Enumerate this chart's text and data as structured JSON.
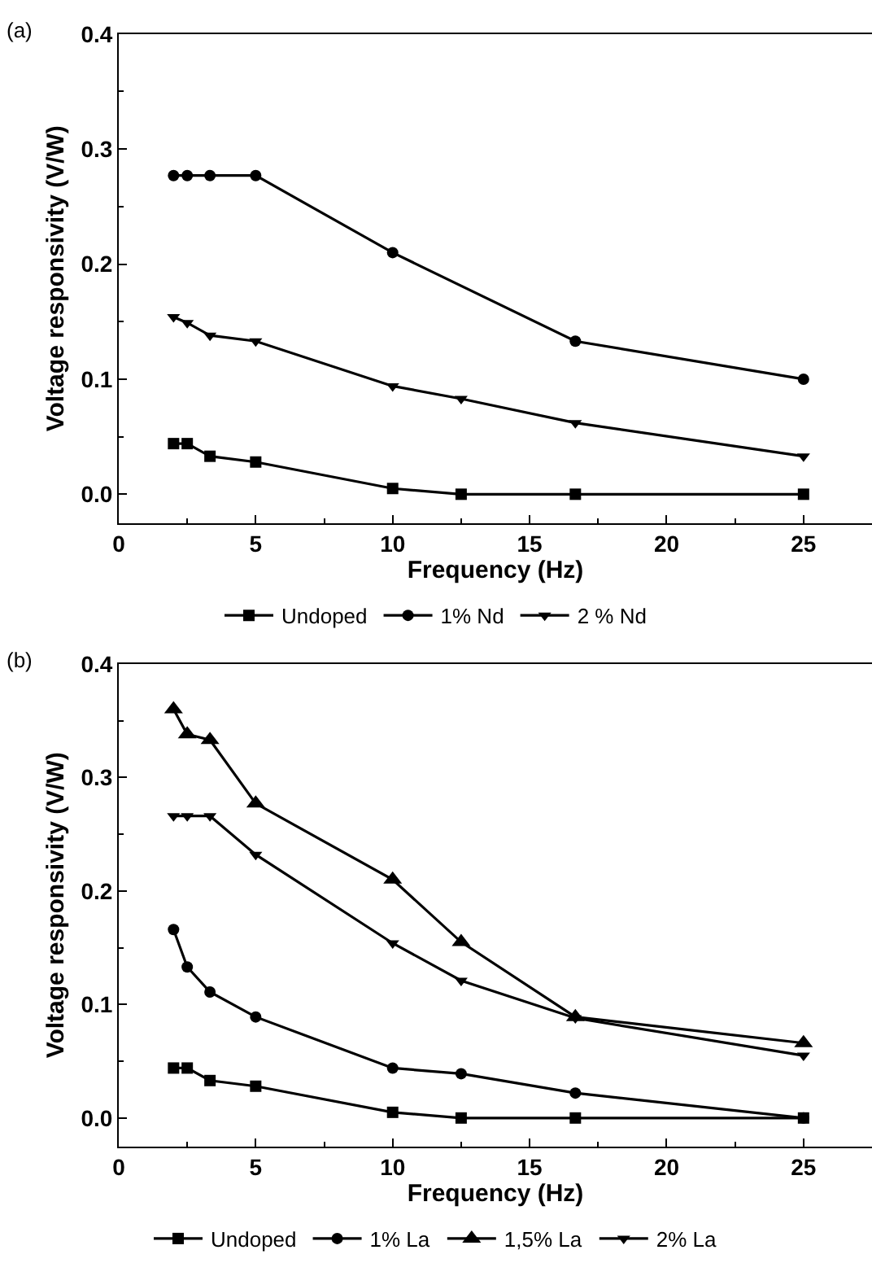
{
  "chart_data": [
    {
      "type": "line",
      "annotations": [
        "(a)"
      ],
      "xlabel": "Frequency (Hz)",
      "ylabel": "Voltage responsivity (V/W)",
      "xlim": [
        0,
        27.5
      ],
      "xticks": [
        0,
        5,
        10,
        15,
        20,
        25
      ],
      "ylim": [
        -0.025,
        0.4
      ],
      "yticks": [
        {
          "value": 0,
          "label": "0.0"
        },
        0.1,
        0.2,
        0.3,
        0.4
      ],
      "grid": false,
      "legend": "bottom",
      "series": [
        {
          "name": "Undoped",
          "color": "#000000",
          "marker": "square",
          "x": [
            2,
            2.5,
            3.33,
            5,
            10,
            12.5,
            16.67,
            25
          ],
          "values": [
            0.044,
            0.044,
            0.033,
            0.028,
            0.005,
            0,
            0,
            0
          ]
        },
        {
          "name": "1% Nd",
          "color": "#000000",
          "marker": "circle",
          "x": [
            2,
            2.5,
            3.33,
            5,
            10,
            16.67,
            25
          ],
          "values": [
            0.277,
            0.277,
            0.277,
            0.277,
            0.21,
            0.133,
            0.1
          ]
        },
        {
          "name": "2 % Nd",
          "color": "#000000",
          "marker": "triangle-down",
          "x": [
            2,
            2.5,
            3.33,
            5,
            10,
            12.5,
            16.67,
            25
          ],
          "values": [
            0.154,
            0.149,
            0.138,
            0.133,
            0.094,
            0.083,
            0.062,
            0.033
          ]
        }
      ]
    },
    {
      "type": "line",
      "annotations": [
        "(b)"
      ],
      "xlabel": "Frequency (Hz)",
      "ylabel": "Voltage responsivity (V/W)",
      "xlim": [
        0,
        27.5
      ],
      "xticks": [
        0,
        5,
        10,
        15,
        20,
        25
      ],
      "ylim": [
        -0.025,
        0.4
      ],
      "yticks": [
        {
          "value": 0,
          "label": "0.0"
        },
        0.1,
        0.2,
        0.3,
        0.4
      ],
      "grid": false,
      "legend": "bottom",
      "series": [
        {
          "name": "Undoped",
          "color": "#000000",
          "marker": "square",
          "x": [
            2,
            2.5,
            3.33,
            5,
            10,
            12.5,
            16.67,
            25
          ],
          "values": [
            0.044,
            0.044,
            0.033,
            0.028,
            0.005,
            0,
            0,
            0
          ]
        },
        {
          "name": "1% La",
          "color": "#000000",
          "marker": "circle",
          "x": [
            2,
            2.5,
            3.33,
            5,
            10,
            12.5,
            16.67,
            25
          ],
          "values": [
            0.166,
            0.133,
            0.111,
            0.089,
            0.044,
            0.039,
            0.022,
            0
          ]
        },
        {
          "name": "1,5% La",
          "color": "#000000",
          "marker": "triangle-up",
          "x": [
            2,
            2.5,
            3.33,
            5,
            10,
            12.5,
            16.67,
            25
          ],
          "values": [
            0.36,
            0.338,
            0.333,
            0.277,
            0.21,
            0.155,
            0.089,
            0.066
          ]
        },
        {
          "name": "2% La",
          "color": "#000000",
          "marker": "triangle-down",
          "x": [
            2,
            2.5,
            3.33,
            5,
            10,
            12.5,
            16.67,
            25
          ],
          "values": [
            0.266,
            0.266,
            0.266,
            0.232,
            0.154,
            0.121,
            0.088,
            0.055
          ]
        }
      ]
    }
  ]
}
